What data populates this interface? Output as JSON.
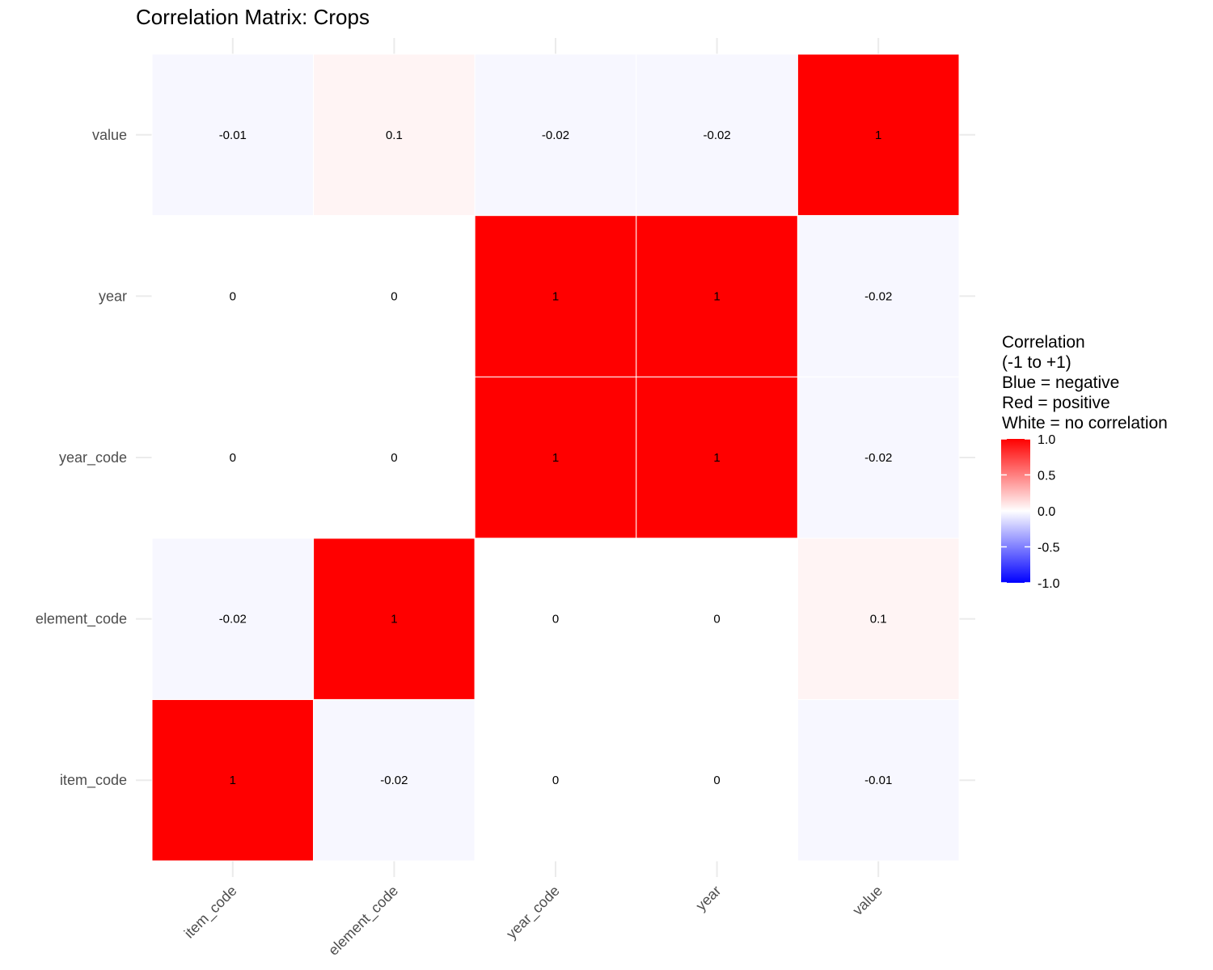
{
  "chart_data": {
    "type": "heatmap",
    "title": "Correlation Matrix: Crops",
    "xlabel": "",
    "ylabel": "",
    "variables": [
      "item_code",
      "element_code",
      "year_code",
      "year",
      "value"
    ],
    "matrix": [
      [
        1,
        -0.02,
        0,
        0,
        -0.01
      ],
      [
        -0.02,
        1,
        0,
        0,
        0.1
      ],
      [
        0,
        0,
        1,
        1,
        -0.02
      ],
      [
        0,
        0,
        1,
        1,
        -0.02
      ],
      [
        -0.01,
        0.1,
        -0.02,
        -0.02,
        1
      ]
    ],
    "color_scale": {
      "low": "#0000ff",
      "mid": "#ffffff",
      "high": "#ff0000",
      "limits": [
        -1,
        1
      ]
    },
    "legend": {
      "title_lines": [
        "Correlation",
        "(-1 to +1)",
        "Blue = negative",
        "Red = positive",
        "White = no correlation"
      ],
      "ticks": [
        "1.0",
        "0.5",
        "0.0",
        "-0.5",
        "-1.0"
      ],
      "position": "right"
    },
    "grid": true
  }
}
